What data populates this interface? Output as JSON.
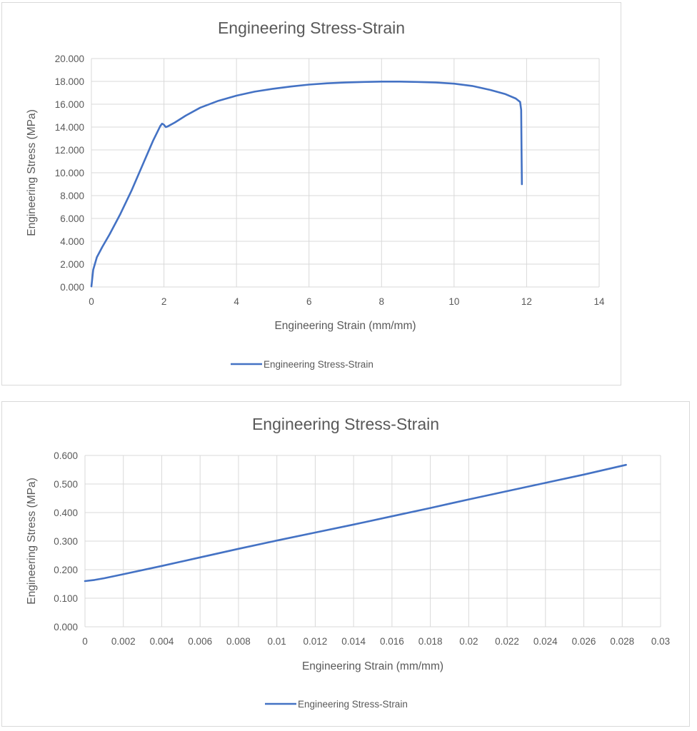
{
  "chart_data": [
    {
      "type": "line",
      "title": "Engineering Stress-Strain",
      "xlabel": "Engineering Strain (mm/mm)",
      "ylabel": "Engineering Stress (MPa)",
      "xlim": [
        0,
        14
      ],
      "ylim": [
        0,
        20
      ],
      "x_ticks": [
        "0",
        "2",
        "4",
        "6",
        "8",
        "10",
        "12",
        "14"
      ],
      "y_ticks": [
        "0.000",
        "2.000",
        "4.000",
        "6.000",
        "8.000",
        "10.000",
        "12.000",
        "14.000",
        "16.000",
        "18.000",
        "20.000"
      ],
      "grid": true,
      "legend": "bottom",
      "series": [
        {
          "name": "Engineering Stress-Strain",
          "color": "#4472c4",
          "x": [
            0,
            0.05,
            0.15,
            0.3,
            0.5,
            0.8,
            1.1,
            1.4,
            1.7,
            1.9,
            1.95,
            2.0,
            2.05,
            2.1,
            2.3,
            2.6,
            3.0,
            3.5,
            4.0,
            4.5,
            5.0,
            5.5,
            6.0,
            6.5,
            7.0,
            7.5,
            8.0,
            8.5,
            9.0,
            9.5,
            10.0,
            10.5,
            11.0,
            11.4,
            11.7,
            11.82,
            11.85,
            11.86,
            11.87
          ],
          "y": [
            0.05,
            1.5,
            2.6,
            3.5,
            4.6,
            6.4,
            8.4,
            10.6,
            12.8,
            14.1,
            14.3,
            14.2,
            14.0,
            14.05,
            14.4,
            15.0,
            15.7,
            16.3,
            16.75,
            17.1,
            17.35,
            17.55,
            17.72,
            17.83,
            17.9,
            17.95,
            17.98,
            17.98,
            17.95,
            17.9,
            17.8,
            17.6,
            17.25,
            16.9,
            16.5,
            16.2,
            15.5,
            12.0,
            9.0
          ]
        }
      ]
    },
    {
      "type": "line",
      "title": "Engineering Stress-Strain",
      "xlabel": "Engineering Strain (mm/mm)",
      "ylabel": "Engineering  Stress (MPa)",
      "xlim": [
        0,
        0.03
      ],
      "ylim": [
        0,
        0.6
      ],
      "x_ticks": [
        "0",
        "0.002",
        "0.004",
        "0.006",
        "0.008",
        "0.01",
        "0.012",
        "0.014",
        "0.016",
        "0.018",
        "0.02",
        "0.022",
        "0.024",
        "0.026",
        "0.028",
        "0.03"
      ],
      "y_ticks": [
        "0.000",
        "0.100",
        "0.200",
        "0.300",
        "0.400",
        "0.500",
        "0.600"
      ],
      "grid": true,
      "legend": "bottom",
      "series": [
        {
          "name": "Engineering Stress-Strain",
          "color": "#4472c4",
          "x": [
            0,
            0.0005,
            0.001,
            0.002,
            0.004,
            0.006,
            0.008,
            0.01,
            0.012,
            0.014,
            0.016,
            0.018,
            0.02,
            0.022,
            0.024,
            0.026,
            0.0282
          ],
          "y": [
            0.16,
            0.164,
            0.17,
            0.184,
            0.213,
            0.243,
            0.273,
            0.302,
            0.33,
            0.358,
            0.387,
            0.416,
            0.446,
            0.475,
            0.504,
            0.533,
            0.567
          ]
        }
      ]
    }
  ]
}
